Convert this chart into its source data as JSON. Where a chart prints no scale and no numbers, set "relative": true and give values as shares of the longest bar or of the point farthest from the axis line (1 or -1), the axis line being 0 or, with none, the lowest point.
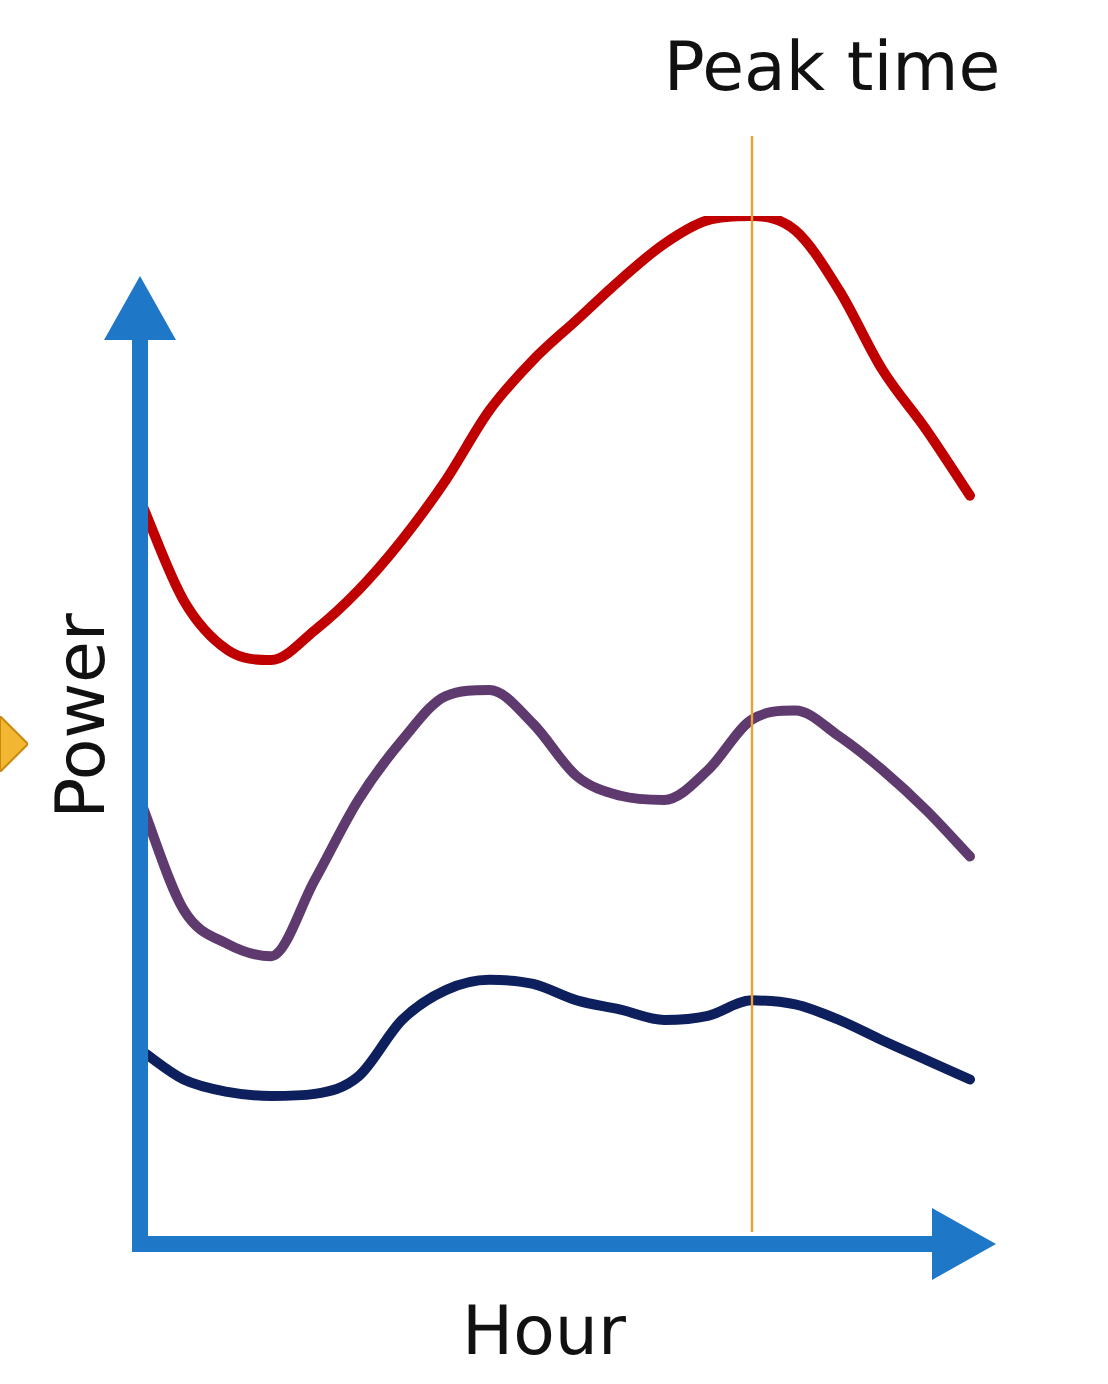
{
  "chart_data": {
    "type": "line",
    "relative": true,
    "xlabel": "Hour",
    "ylabel": "Power",
    "legend": false,
    "marker": "none",
    "line_style": "solid",
    "categories": [
      null,
      null,
      null,
      null,
      null,
      null,
      null,
      null,
      null,
      null,
      null,
      null,
      null,
      null,
      null,
      null,
      null,
      null,
      null,
      null
    ],
    "series": [
      {
        "color": "#c00000",
        "values": [
          0.724,
          0.626,
          0.578,
          0.568,
          0.597,
          0.636,
          0.685,
          0.743,
          0.811,
          0.86,
          0.899,
          0.938,
          0.973,
          0.996,
          1,
          0.986,
          0.928,
          0.85,
          0.792,
          0.728
        ]
      },
      {
        "color": "#5e3a6e",
        "values": [
          0.432,
          0.325,
          0.292,
          0.28,
          0.354,
          0.432,
          0.49,
          0.533,
          0.539,
          0.506,
          0.455,
          0.436,
          0.432,
          0.461,
          0.51,
          0.519,
          0.494,
          0.461,
          0.422,
          0.377
        ]
      },
      {
        "color": "#0d1f5c",
        "values": [
          0.189,
          0.16,
          0.148,
          0.144,
          0.146,
          0.163,
          0.218,
          0.247,
          0.257,
          0.253,
          0.237,
          0.228,
          0.218,
          0.222,
          0.237,
          0.233,
          0.218,
          0.198,
          0.179,
          0.16
        ]
      }
    ],
    "annotations": [
      "Peak time"
    ]
  }
}
